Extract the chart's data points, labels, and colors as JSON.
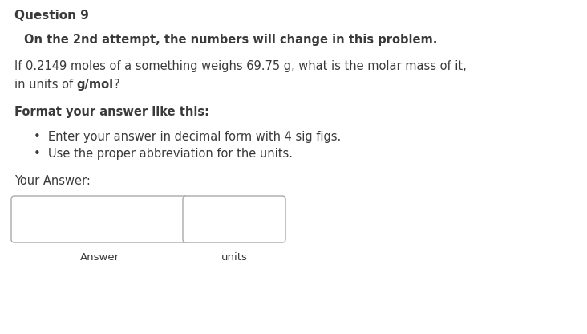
{
  "background_color": "#ffffff",
  "title": "Question 9",
  "title_fontsize": 11,
  "line1": "On the 2nd attempt, the numbers will change in this problem.",
  "line1_fontsize": 10.5,
  "line2a": "If 0.2149 moles of a something weighs 69.75 g, what is the molar mass of it,",
  "line2b_normal": "in units of ",
  "line2b_bold": "g/mol",
  "line2c": "?",
  "line2_fontsize": 10.5,
  "line3": "Format your answer like this:",
  "line3_fontsize": 10.5,
  "bullet1": "Enter your answer in decimal form with 4 sig figs.",
  "bullet2": "Use the proper abbreviation for the units.",
  "bullet_fontsize": 10.5,
  "your_answer": "Your Answer:",
  "your_answer_fontsize": 10.5,
  "answer_label": "Answer",
  "units_label": "units",
  "label_fontsize": 9.5,
  "text_color": "#3a3a3a",
  "box_edge_color": "#aaaaaa"
}
